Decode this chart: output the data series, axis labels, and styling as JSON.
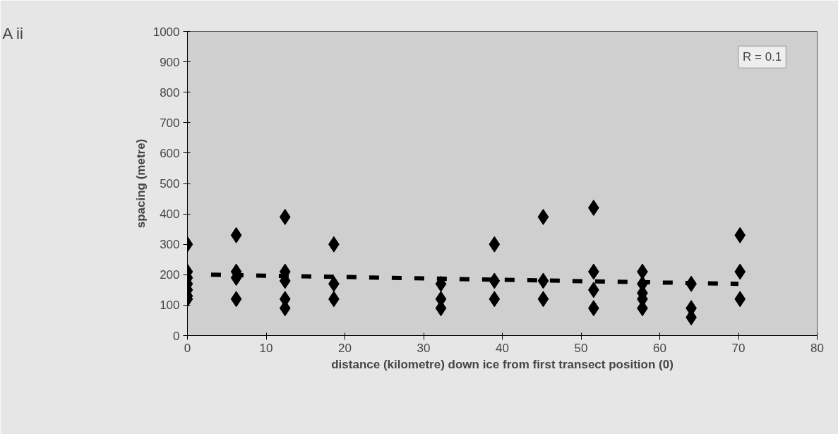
{
  "chart_data": {
    "type": "scatter",
    "xlabel": "distance (kilometre) down ice from first transect position (0)",
    "ylabel": "spacing (metre)",
    "annotations": [
      "A ii",
      "R = 0.1"
    ],
    "xlim": [
      0,
      80
    ],
    "xticks": [
      0,
      10,
      20,
      30,
      40,
      50,
      60,
      70,
      80
    ],
    "ylim": [
      0,
      1000
    ],
    "yticks": [
      0,
      100,
      200,
      300,
      400,
      500,
      600,
      700,
      800,
      900,
      1000
    ],
    "grid": false,
    "series": [
      {
        "color": "#000000",
        "marker": "diamond",
        "x": [
          0,
          0,
          0,
          0,
          0,
          0,
          0,
          6.2,
          6.2,
          6.2,
          6.2,
          12.4,
          12.4,
          12.4,
          12.4,
          12.4,
          18.6,
          18.6,
          18.6,
          32.2,
          32.2,
          32.2,
          39,
          39,
          39,
          45.2,
          45.2,
          45.2,
          51.6,
          51.6,
          51.6,
          51.6,
          57.8,
          57.8,
          57.8,
          57.8,
          57.8,
          64,
          64,
          64,
          70.2,
          70.2,
          70.2
        ],
        "values": [
          300,
          210,
          190,
          170,
          150,
          130,
          120,
          330,
          210,
          190,
          120,
          390,
          210,
          180,
          120,
          90,
          300,
          170,
          120,
          170,
          120,
          90,
          300,
          180,
          120,
          390,
          180,
          120,
          420,
          210,
          150,
          90,
          210,
          170,
          140,
          120,
          90,
          170,
          90,
          60,
          330,
          210,
          120
        ]
      },
      {
        "type": "line",
        "color": "#000000",
        "line_style": "dashed",
        "x": [
          3,
          70
        ],
        "values": [
          200,
          170
        ]
      }
    ]
  }
}
